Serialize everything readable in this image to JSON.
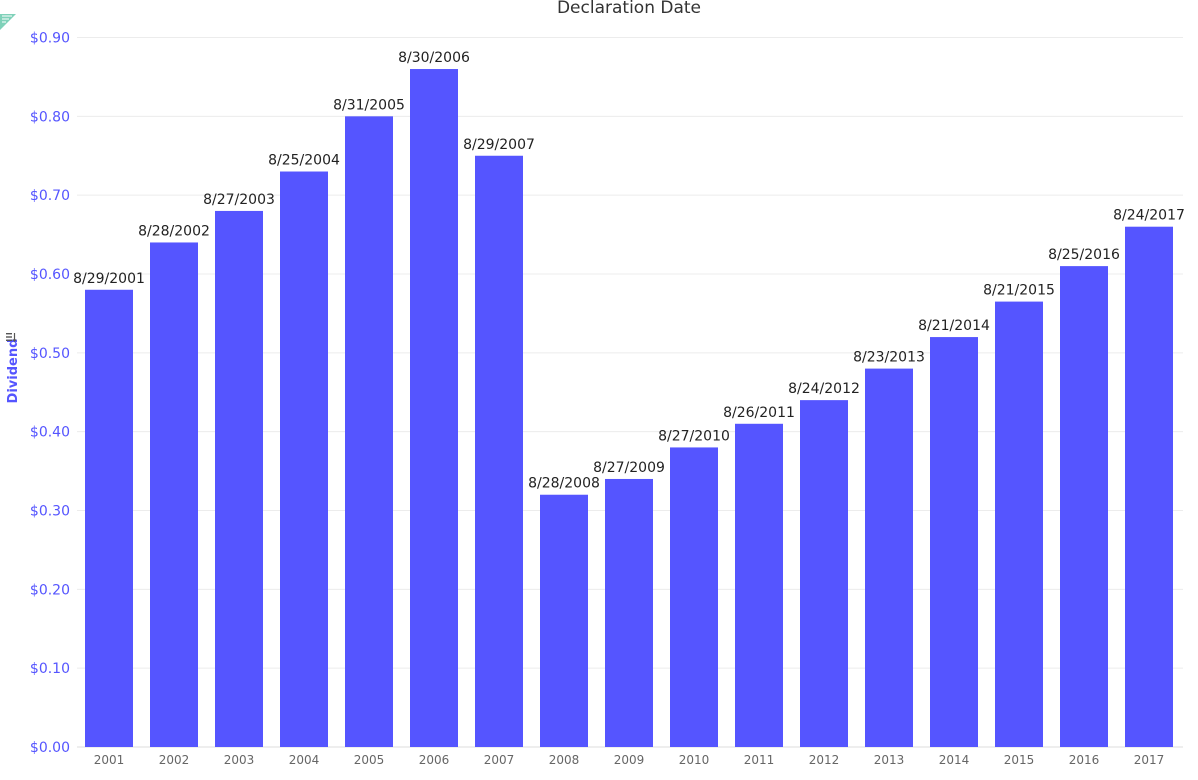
{
  "colors": {
    "bar": "#5555ff",
    "axis_text": "#5555ff"
  },
  "icons": {
    "sort": "sort-icon",
    "corner": "resize-corner-icon"
  },
  "chart_data": {
    "type": "bar",
    "title": "Declaration Date",
    "xlabel": "",
    "ylabel": "Dividend",
    "ylim": [
      0,
      0.9
    ],
    "yticks": [
      0,
      0.1,
      0.2,
      0.3,
      0.4,
      0.5,
      0.6,
      0.7,
      0.8,
      0.9
    ],
    "ytick_labels": [
      "$0.00",
      "$0.10",
      "$0.20",
      "$0.30",
      "$0.40",
      "$0.50",
      "$0.60",
      "$0.70",
      "$0.80",
      "$0.90"
    ],
    "grid": true,
    "categories": [
      "2001",
      "2002",
      "2003",
      "2004",
      "2005",
      "2006",
      "2007",
      "2008",
      "2009",
      "2010",
      "2011",
      "2012",
      "2013",
      "2014",
      "2015",
      "2016",
      "2017"
    ],
    "values": [
      0.58,
      0.64,
      0.68,
      0.73,
      0.8,
      0.86,
      0.75,
      0.32,
      0.34,
      0.38,
      0.41,
      0.44,
      0.48,
      0.52,
      0.565,
      0.61,
      0.66
    ],
    "data_labels": [
      "8/29/2001",
      "8/28/2002",
      "8/27/2003",
      "8/25/2004",
      "8/31/2005",
      "8/30/2006",
      "8/29/2007",
      "8/28/2008",
      "8/27/2009",
      "8/27/2010",
      "8/26/2011",
      "8/24/2012",
      "8/23/2013",
      "8/21/2014",
      "8/21/2015",
      "8/25/2016",
      "8/24/2017"
    ]
  }
}
